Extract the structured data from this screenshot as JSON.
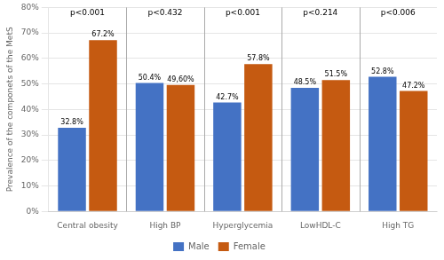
{
  "chart_data": {
    "type": "bar",
    "categories": [
      "Central obesity",
      "High BP",
      "Hyperglycemia",
      "LowHDL-C",
      "High TG"
    ],
    "series": [
      {
        "name": "Male",
        "color": "#4472C4",
        "values": [
          32.8,
          50.4,
          42.7,
          48.5,
          52.8
        ],
        "value_labels": [
          "32.8%",
          "50.4%",
          "42.7%",
          "48.5%",
          "52.8%"
        ]
      },
      {
        "name": "Female",
        "color": "#C55A11",
        "values": [
          67.2,
          49.6,
          57.8,
          51.5,
          47.2
        ],
        "value_labels": [
          "67.2%",
          "49,60%",
          "57.8%",
          "51.5%",
          "47.2%"
        ]
      }
    ],
    "annotations": [
      "p<0.001",
      "p<0.432",
      "p<0.001",
      "p<0.214",
      "p<0.006"
    ],
    "ylabel": "Prevalence of the componets of the MetS",
    "ylim": [
      0,
      80
    ],
    "yticks": [
      {
        "value": 0,
        "label": "0%"
      },
      {
        "value": 10,
        "label": "10%"
      },
      {
        "value": 20,
        "label": "20%"
      },
      {
        "value": 30,
        "label": "30%"
      },
      {
        "value": 40,
        "label": "40%"
      },
      {
        "value": 50,
        "label": "50%"
      },
      {
        "value": 60,
        "label": "60%"
      },
      {
        "value": 70,
        "label": "70%"
      },
      {
        "value": 80,
        "label": "80%"
      }
    ],
    "grid": true,
    "legend": "bottom",
    "data_labels": true
  }
}
